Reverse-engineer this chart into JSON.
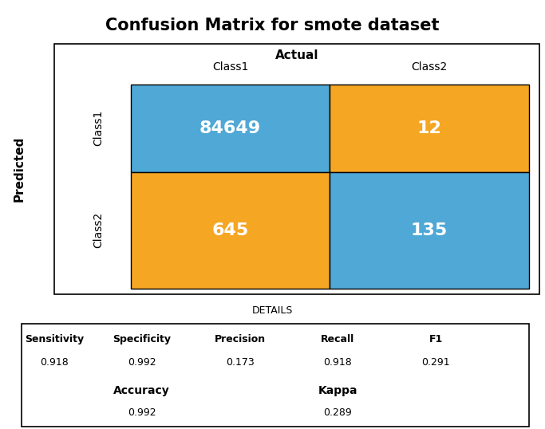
{
  "title": "Confusion Matrix for smote dataset",
  "matrix": [
    [
      84649,
      12
    ],
    [
      645,
      135
    ]
  ],
  "cell_colors": [
    [
      "#4fa8d5",
      "#f5a623"
    ],
    [
      "#f5a623",
      "#4fa8d5"
    ]
  ],
  "text_color": "white",
  "actual_label": "Actual",
  "predicted_label": "Predicted",
  "class_labels": [
    "Class1",
    "Class2"
  ],
  "details_title": "DETAILS",
  "metrics": {
    "Sensitivity": "0.918",
    "Specificity": "0.992",
    "Precision": "0.173",
    "Recall": "0.918",
    "F1": "0.291"
  },
  "accuracy_label": "Accuracy",
  "accuracy_value": "0.992",
  "kappa_label": "Kappa",
  "kappa_value": "0.289",
  "blue_color": "#4fa8d5",
  "orange_color": "#f5a623",
  "title_fontsize": 15,
  "cell_fontsize": 16,
  "label_fontsize": 10,
  "metric_label_fontsize": 9,
  "metric_value_fontsize": 9
}
